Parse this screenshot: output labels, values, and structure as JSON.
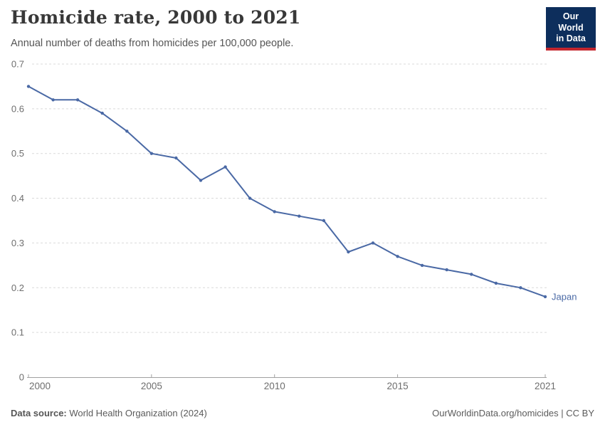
{
  "header": {
    "title": "Homicide rate, 2000 to 2021",
    "subtitle": "Annual number of deaths from homicides per 100,000 people.",
    "logo": {
      "line1": "Our World",
      "line2": "in Data",
      "bg_color": "#0d2e5c",
      "accent_color": "#c4262e"
    }
  },
  "chart_data": {
    "type": "line",
    "title": "Homicide rate, 2000 to 2021",
    "xlabel": "",
    "ylabel": "",
    "x": [
      2000,
      2001,
      2002,
      2003,
      2004,
      2005,
      2006,
      2007,
      2008,
      2009,
      2010,
      2011,
      2012,
      2013,
      2014,
      2015,
      2016,
      2017,
      2018,
      2019,
      2020,
      2021
    ],
    "series": [
      {
        "name": "Japan",
        "color": "#4a69a5",
        "values": [
          0.65,
          0.62,
          0.62,
          0.59,
          0.55,
          0.5,
          0.49,
          0.44,
          0.47,
          0.4,
          0.37,
          0.36,
          0.35,
          0.28,
          0.3,
          0.27,
          0.25,
          0.24,
          0.23,
          0.21,
          0.2,
          0.18
        ]
      }
    ],
    "xlim": [
      2000,
      2021
    ],
    "ylim": [
      0,
      0.7
    ],
    "xticks": [
      2000,
      2005,
      2010,
      2015,
      2021
    ],
    "yticks": [
      0,
      0.1,
      0.2,
      0.3,
      0.4,
      0.5,
      0.6,
      0.7
    ],
    "grid": "horizontal-dashed",
    "gridline_color": "#dadada",
    "axis_color": "#a1a1a1",
    "tick_label_color": "#6e6e6e",
    "legend_position": "end-of-line-label",
    "end_label": "Japan"
  },
  "footer": {
    "source_label": "Data source:",
    "source_value": " World Health Organization (2024)",
    "credit": "OurWorldinData.org/homicides | CC BY"
  }
}
